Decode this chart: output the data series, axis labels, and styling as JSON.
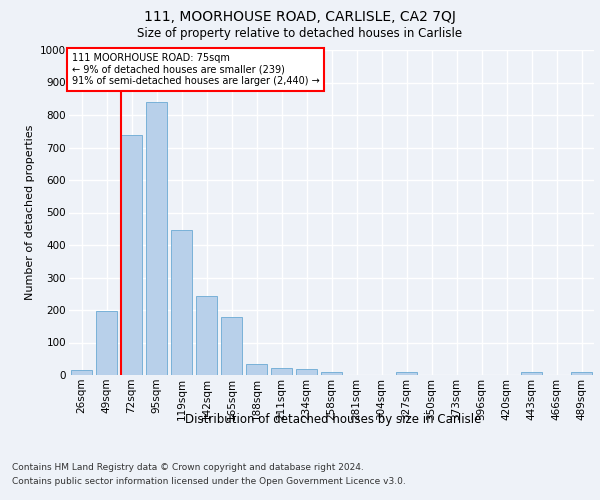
{
  "title_line1": "111, MOORHOUSE ROAD, CARLISLE, CA2 7QJ",
  "title_line2": "Size of property relative to detached houses in Carlisle",
  "xlabel": "Distribution of detached houses by size in Carlisle",
  "ylabel": "Number of detached properties",
  "categories": [
    "26sqm",
    "49sqm",
    "72sqm",
    "95sqm",
    "119sqm",
    "142sqm",
    "165sqm",
    "188sqm",
    "211sqm",
    "234sqm",
    "258sqm",
    "281sqm",
    "304sqm",
    "327sqm",
    "350sqm",
    "373sqm",
    "396sqm",
    "420sqm",
    "443sqm",
    "466sqm",
    "489sqm"
  ],
  "values": [
    15,
    197,
    737,
    840,
    447,
    242,
    180,
    33,
    22,
    17,
    8,
    0,
    0,
    10,
    0,
    0,
    0,
    0,
    10,
    0,
    10
  ],
  "bar_color": "#b8d0ea",
  "bar_edgecolor": "#6aaad4",
  "vline_x_index": 2,
  "annotation_box_text": "111 MOORHOUSE ROAD: 75sqm\n← 9% of detached houses are smaller (239)\n91% of semi-detached houses are larger (2,440) →",
  "ylim": [
    0,
    1000
  ],
  "yticks": [
    0,
    100,
    200,
    300,
    400,
    500,
    600,
    700,
    800,
    900,
    1000
  ],
  "footer_line1": "Contains HM Land Registry data © Crown copyright and database right 2024.",
  "footer_line2": "Contains public sector information licensed under the Open Government Licence v3.0.",
  "bg_color": "#eef2f8",
  "plot_bg_color": "#eef2f8",
  "grid_color": "#ffffff",
  "title1_fontsize": 10,
  "title2_fontsize": 8.5,
  "ylabel_fontsize": 8,
  "xlabel_fontsize": 8.5,
  "tick_fontsize": 7.5,
  "ann_fontsize": 7,
  "footer_fontsize": 6.5
}
